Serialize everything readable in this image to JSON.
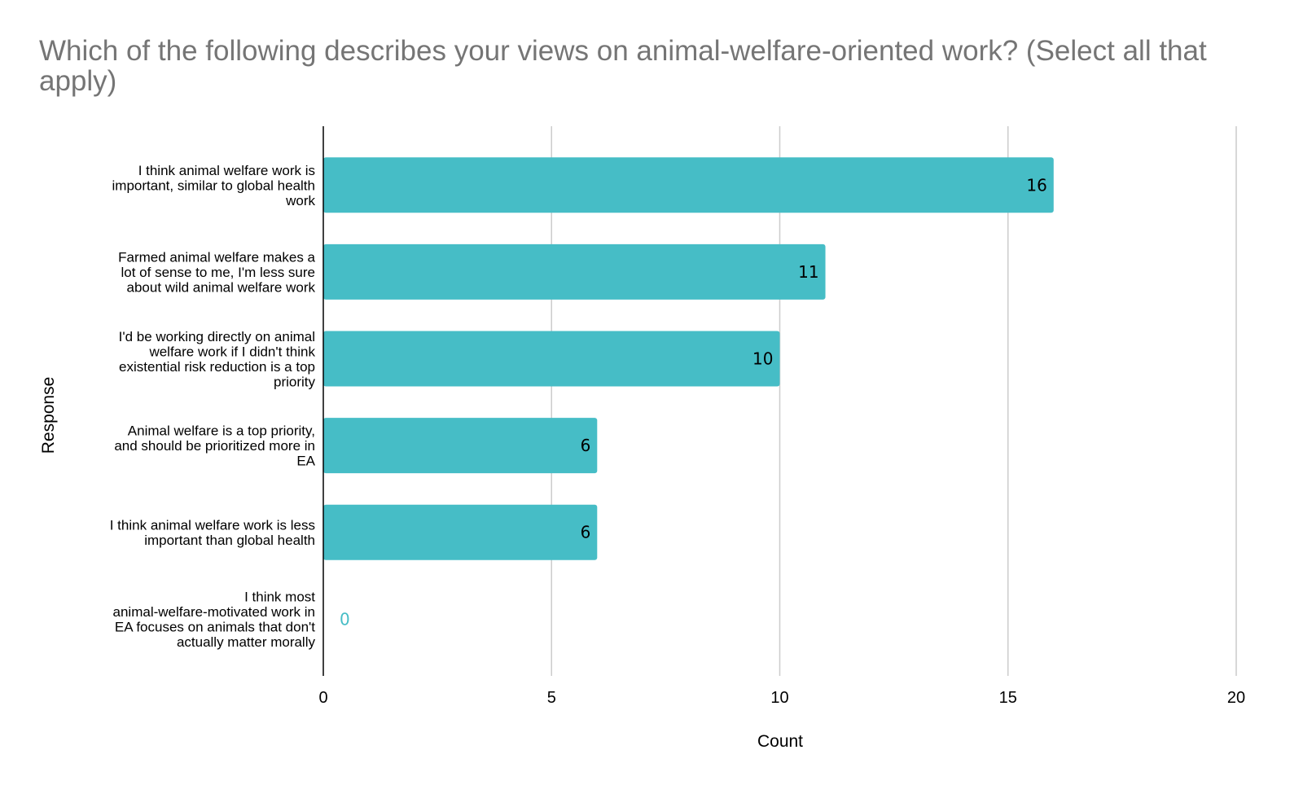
{
  "chart_data": {
    "type": "bar",
    "orientation": "horizontal",
    "title": "Which of the following describes your views on animal-welfare-oriented work? (Select all that apply)",
    "xlabel": "Count",
    "ylabel": "Response",
    "xlim": [
      0,
      20
    ],
    "xticks": [
      0,
      5,
      10,
      15,
      20
    ],
    "grid": true,
    "bar_color": "#46bdc6",
    "categories": [
      [
        "I think animal welfare work is",
        "important, similar to global health",
        "work"
      ],
      [
        "Farmed animal welfare makes a",
        "lot of sense to me, I'm less sure",
        "about wild animal welfare work"
      ],
      [
        "I'd be working directly on animal",
        "welfare work if I didn't think",
        "existential risk reduction is a top",
        "priority"
      ],
      [
        "Animal welfare is a top priority,",
        "and should be prioritized more in",
        "EA"
      ],
      [
        "I think animal welfare work is less",
        "important than global health"
      ],
      [
        "I think most",
        "animal-welfare-motivated work in",
        "EA focuses on animals that don't",
        "actually matter morally"
      ]
    ],
    "values": [
      16,
      11,
      10,
      6,
      6,
      0
    ]
  }
}
